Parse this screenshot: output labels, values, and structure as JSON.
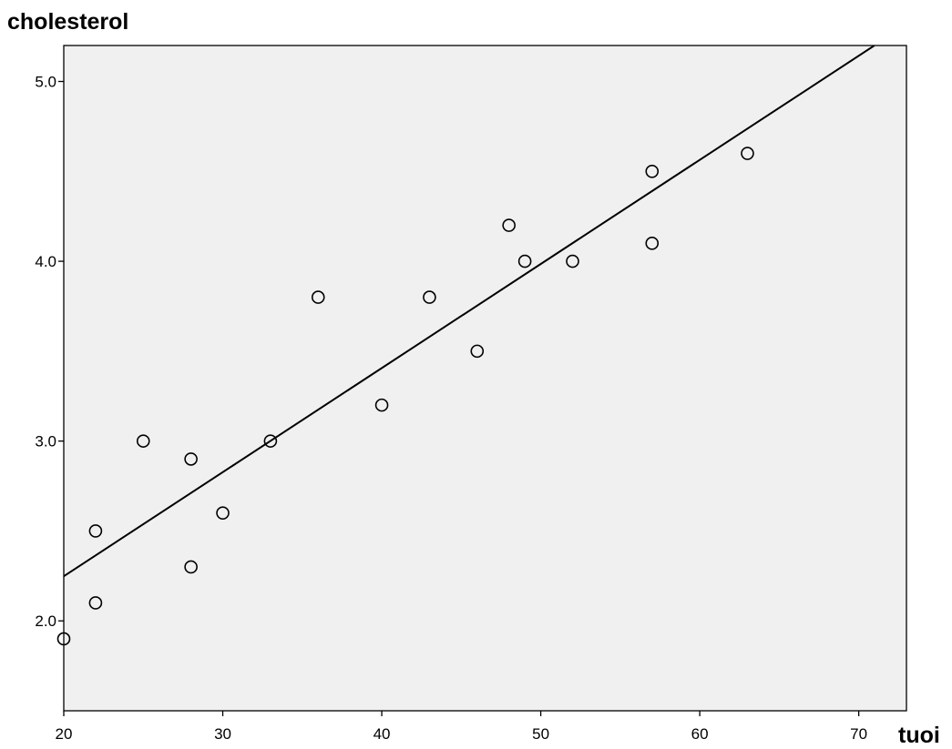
{
  "chart_data": {
    "type": "scatter",
    "title": "",
    "xlabel": "tuoi",
    "ylabel": "cholesterol",
    "xlim": [
      20,
      73
    ],
    "ylim": [
      1.5,
      5.2
    ],
    "x_ticks": [
      20,
      30,
      40,
      50,
      60,
      70
    ],
    "y_ticks": [
      2.0,
      3.0,
      4.0,
      5.0
    ],
    "x_tick_labels": [
      "20",
      "30",
      "40",
      "50",
      "60",
      "70"
    ],
    "y_tick_labels": [
      "2.0",
      "3.0",
      "4.0",
      "5.0"
    ],
    "grid": false,
    "legend": "none",
    "background_color": "#f0f0f0",
    "marker": "open-circle",
    "points": [
      {
        "x": 20,
        "y": 1.9
      },
      {
        "x": 22,
        "y": 2.1
      },
      {
        "x": 22,
        "y": 2.5
      },
      {
        "x": 25,
        "y": 3.0
      },
      {
        "x": 28,
        "y": 2.3
      },
      {
        "x": 28,
        "y": 2.9
      },
      {
        "x": 30,
        "y": 2.6
      },
      {
        "x": 33,
        "y": 3.0
      },
      {
        "x": 36,
        "y": 3.8
      },
      {
        "x": 40,
        "y": 3.2
      },
      {
        "x": 43,
        "y": 3.8
      },
      {
        "x": 46,
        "y": 3.5
      },
      {
        "x": 48,
        "y": 4.2
      },
      {
        "x": 49,
        "y": 4.0
      },
      {
        "x": 52,
        "y": 4.0
      },
      {
        "x": 57,
        "y": 4.5
      },
      {
        "x": 57,
        "y": 4.1
      },
      {
        "x": 63,
        "y": 4.6
      }
    ],
    "fit_line": {
      "type": "linear",
      "intercept": 1.09,
      "slope": 0.0579
    }
  }
}
